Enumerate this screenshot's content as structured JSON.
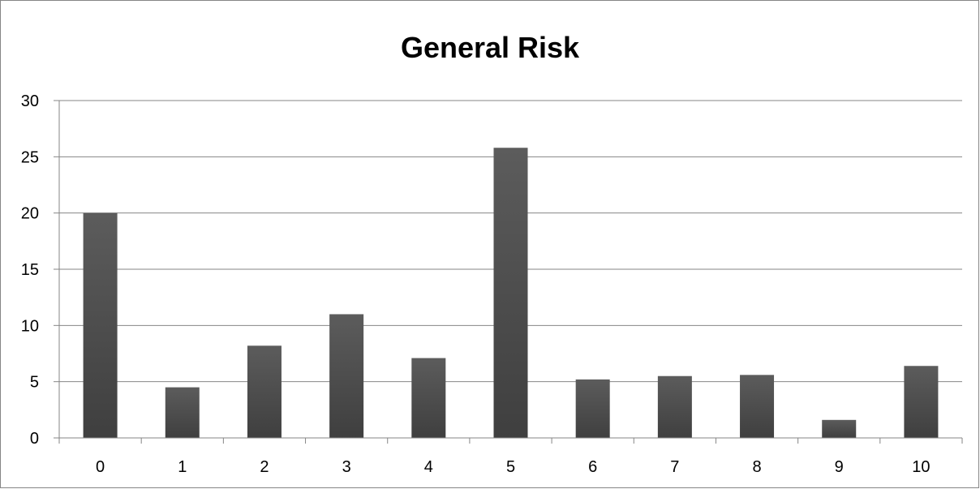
{
  "chart_data": {
    "type": "bar",
    "title": "General Risk",
    "xlabel": "",
    "ylabel": "",
    "categories": [
      "0",
      "1",
      "2",
      "3",
      "4",
      "5",
      "6",
      "7",
      "8",
      "9",
      "10"
    ],
    "values": [
      20,
      4.5,
      8.2,
      11,
      7.1,
      25.8,
      5.2,
      5.5,
      5.6,
      1.6,
      6.4
    ],
    "ylim": [
      0,
      30
    ],
    "yticks": [
      0,
      5,
      10,
      15,
      20,
      25,
      30
    ],
    "grid": true,
    "legend": "none",
    "colors": {
      "bar_top": "#5c5c5c",
      "bar_bottom": "#3f3f3f",
      "grid": "#868686",
      "axis": "#868686"
    }
  }
}
